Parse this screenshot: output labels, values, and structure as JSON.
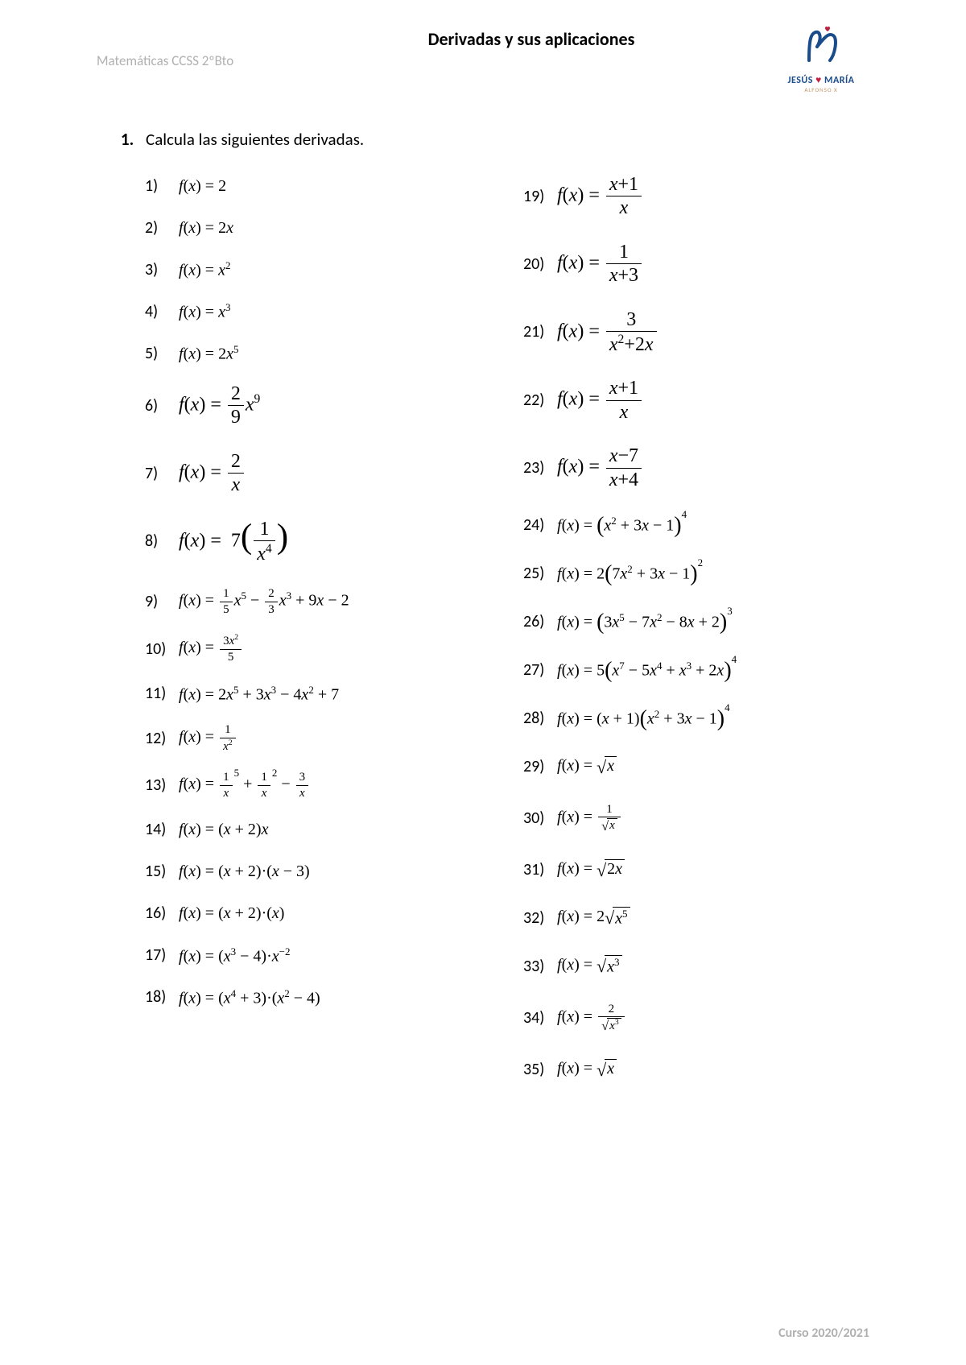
{
  "header": {
    "course_label": "Matemáticas CCSS 2ºBto",
    "title": "Derivadas y sus aplicaciones",
    "logo": {
      "brand_top": "JESÚS",
      "heart": "♥",
      "brand_bot": "MARÍA",
      "sub": "ALFONSO X",
      "stroke_color": "#1a4c8c",
      "heart_color": "#c02040"
    }
  },
  "section": {
    "number": "1.",
    "text": "Calcula las siguientes derivadas."
  },
  "footer": {
    "year": "Curso 2020/2021"
  },
  "exercises_left": [
    {
      "n": "1)",
      "type": "plain",
      "rhs": "2"
    },
    {
      "n": "2)",
      "type": "plain",
      "rhs_html": "2<span class='it'>x</span>"
    },
    {
      "n": "3)",
      "type": "plain",
      "rhs_html": "<span class='it'>x</span><span class='sup'>2</span>"
    },
    {
      "n": "4)",
      "type": "plain",
      "rhs_html": "<span class='it'>x</span><span class='sup'>3</span>"
    },
    {
      "n": "5)",
      "type": "plain",
      "rhs_html": "2<span class='it'>x</span><span class='sup'>5</span>"
    },
    {
      "n": "6)",
      "type": "frac_coef_pow",
      "size": "large",
      "num": "2",
      "den": "9",
      "tail_html": "<span class='it'>x</span><span class='sup'>9</span>"
    },
    {
      "n": "7)",
      "type": "frac",
      "size": "large",
      "num": "2",
      "den_html": "<span class='it'>x</span>"
    },
    {
      "n": "8)",
      "type": "paren_frac",
      "size": "large",
      "coef": "7",
      "num": "1",
      "den_html": "<span class='it'>x</span><span class='sup'>4</span>"
    },
    {
      "n": "9)",
      "type": "poly",
      "rhs_html": "<span class='frac sm'><span class='num'>1</span><span class='den'>5</span></span><span class='it'>x</span><span class='sup'>5</span> − <span class='frac sm'><span class='num'>2</span><span class='den'>3</span></span><span class='it'>x</span><span class='sup'>3</span> + 9<span class='it'>x</span> − 2"
    },
    {
      "n": "10)",
      "type": "frac",
      "num_html": "3<span class='it'>x</span><span class='sup'>2</span>",
      "den": "5",
      "sm": true
    },
    {
      "n": "11)",
      "type": "plain",
      "rhs_html": "2<span class='it'>x</span><span class='sup'>5</span> + 3<span class='it'>x</span><span class='sup'>3</span> − 4<span class='it'>x</span><span class='sup'>2</span> + 7"
    },
    {
      "n": "12)",
      "type": "frac",
      "num": "1",
      "den_html": "<span class='it'>x</span><span class='sup'>2</span>",
      "sm": true
    },
    {
      "n": "13)",
      "type": "plain",
      "rhs_html": "<span class='frac sm'><span class='num'>1</span><span class='den'><span class='it'>x</span></span></span><span class='sup' style='top:-8px'>5</span> + <span class='frac sm'><span class='num'>1</span><span class='den'><span class='it'>x</span></span></span><span class='sup' style='top:-8px'>2</span> − <span class='frac sm'><span class='num'>3</span><span class='den'><span class='it'>x</span></span></span>"
    },
    {
      "n": "14)",
      "type": "plain",
      "rhs_html": "(<span class='it'>x</span> + 2)<span class='it'>x</span>"
    },
    {
      "n": "15)",
      "type": "plain",
      "rhs_html": "(<span class='it'>x</span> + 2)·(<span class='it'>x</span> − 3)"
    },
    {
      "n": "16)",
      "type": "plain",
      "rhs_html": "(<span class='it'>x</span> + 2)·(<span class='it'>x</span>)"
    },
    {
      "n": "17)",
      "type": "plain",
      "rhs_html": "(<span class='it'>x</span><span class='sup'>3</span> − 4)·<span class='it'>x</span><span class='sup'>−2</span>"
    },
    {
      "n": "18)",
      "type": "plain",
      "rhs_html": "(<span class='it'>x</span><span class='sup'>4</span> + 3)·(<span class='it'>x</span><span class='sup'>2</span> − 4)"
    }
  ],
  "exercises_right": [
    {
      "n": "19)",
      "type": "frac",
      "size": "large",
      "num_html": "<span class='it'>x</span>+1",
      "den_html": "<span class='it'>x</span>"
    },
    {
      "n": "20)",
      "type": "frac",
      "size": "large",
      "num": "1",
      "den_html": "<span class='it'>x</span>+3"
    },
    {
      "n": "21)",
      "type": "frac",
      "size": "large",
      "num": "3",
      "den_html": "<span class='it'>x</span><span class='sup'>2</span>+2<span class='it'>x</span>"
    },
    {
      "n": "22)",
      "type": "frac",
      "size": "large",
      "num_html": "<span class='it'>x</span>+1",
      "den_html": "<span class='it'>x</span>"
    },
    {
      "n": "23)",
      "type": "frac",
      "size": "large",
      "num_html": "<span class='it'>x</span>−7",
      "den_html": "<span class='it'>x</span>+4"
    },
    {
      "n": "24)",
      "type": "powparen",
      "inner_html": "<span class='it'>x</span><span class='sup'>2</span> + 3<span class='it'>x</span> − 1",
      "exp": "4"
    },
    {
      "n": "25)",
      "type": "powparen",
      "coef": "2",
      "inner_html": "7<span class='it'>x</span><span class='sup'>2</span> + 3<span class='it'>x</span> − 1",
      "exp": "2"
    },
    {
      "n": "26)",
      "type": "powparen",
      "inner_html": "3<span class='it'>x</span><span class='sup'>5</span> − 7<span class='it'>x</span><span class='sup'>2</span> − 8<span class='it'>x</span> + 2",
      "exp": "3"
    },
    {
      "n": "27)",
      "type": "powparen",
      "coef": "5",
      "inner_html": "<span class='it'>x</span><span class='sup'>7</span> − 5<span class='it'>x</span><span class='sup'>4</span> + <span class='it'>x</span><span class='sup'>3</span> + 2<span class='it'>x</span>",
      "exp": "4"
    },
    {
      "n": "28)",
      "type": "prod_powparen",
      "left_html": "(<span class='it'>x</span> + 1)",
      "inner_html": "<span class='it'>x</span><span class='sup'>2</span> + 3<span class='it'>x</span> − 1",
      "exp": "4"
    },
    {
      "n": "29)",
      "type": "sqrt",
      "body_html": "<span class='it'>x</span>"
    },
    {
      "n": "30)",
      "type": "frac_sqrt",
      "num": "1",
      "body_html": "<span class='it'>x</span>",
      "sm": true
    },
    {
      "n": "31)",
      "type": "sqrt",
      "body_html": "2<span class='it'>x</span>"
    },
    {
      "n": "32)",
      "type": "coef_sqrt",
      "coef": "2",
      "body_html": "<span class='it'>x</span><span class='sup'>5</span>"
    },
    {
      "n": "33)",
      "type": "sqrt",
      "body_html": "<span class='it'>x</span><span class='sup'>3</span>"
    },
    {
      "n": "34)",
      "type": "frac_sqrt",
      "num": "2",
      "body_html": "<span class='it'>x</span><span class='sup'>3</span>",
      "sm": true
    },
    {
      "n": "35)",
      "type": "sqrt",
      "body_html": "<span class='it'>x</span>"
    }
  ],
  "colors": {
    "text": "#000000",
    "muted": "#b0b0b0",
    "bg": "#ffffff"
  }
}
